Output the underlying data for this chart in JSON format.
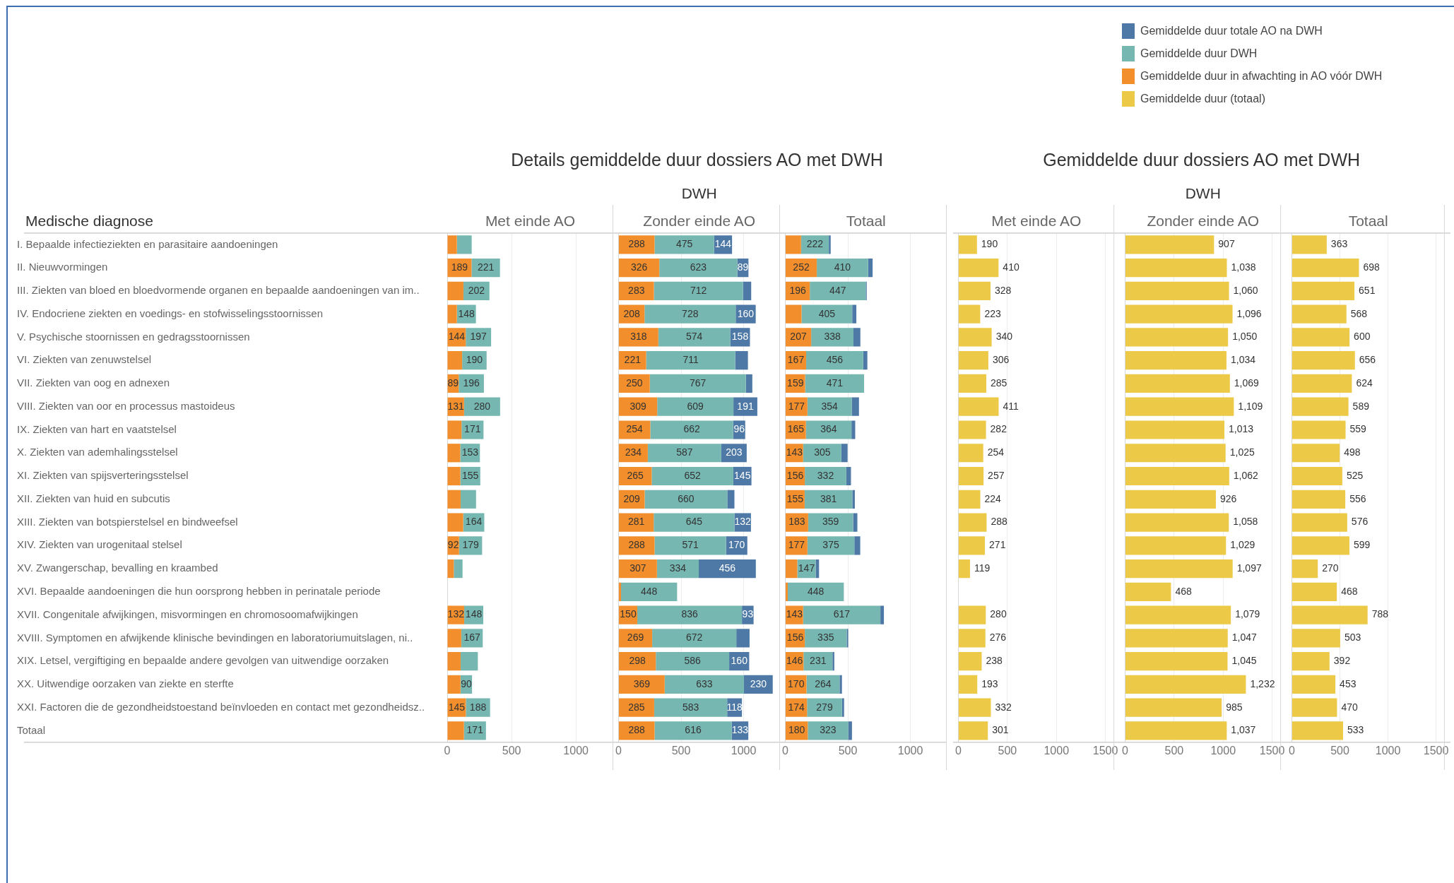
{
  "chart_data": [
    {
      "type": "bar",
      "orientation": "horizontal",
      "stacked": true,
      "title": "Met einde AO",
      "ylabel": "Medische diagnose",
      "legend": "top right",
      "grid": "x",
      "xlim": [
        0,
        1290
      ],
      "xticks": [
        0,
        500,
        1000
      ],
      "categories": [
        "I. Bepaalde infectieziekten en parasitaire aandoeningen",
        "II. Nieuwvormingen",
        "III. Ziekten van bloed en bloedvormende organen en bepaalde aandoeningen van im..",
        "IV. Endocriene ziekten en voedings- en stofwisselingsstoornissen",
        "V. Psychische stoornissen en gedragsstoornissen",
        "VI. Ziekten van zenuwstelsel",
        "VII. Ziekten van oog en adnexen",
        "VIII. Ziekten van oor en processus mastoideus",
        "IX. Ziekten van hart en vaatstelsel",
        "X. Ziekten van ademhalingsstelsel",
        "XI. Ziekten van spijsverteringsstelsel",
        "XII. Ziekten van huid en subcutis",
        "XIII. Ziekten van botspierstelsel en bindweefsel",
        "XIV. Ziekten van urogenitaal stelsel",
        "XV. Zwangerschap, bevalling en kraambed",
        "XVI. Bepaalde aandoeningen die hun oorsprong hebben in perinatale periode",
        "XVII. Congenitale afwijkingen, misvormingen en chromosoomafwijkingen",
        "XVIII. Symptomen en afwijkende klinische bevindingen en laboratoriumuitslagen, ni..",
        "XIX. Letsel, vergiftiging en bepaalde andere gevolgen van uitwendige oorzaken",
        "XX. Uitwendige oorzaken van ziekte en sterfte",
        "XXI. Factoren die de gezondheidstoestand beïnvloeden en contact met gezondheidsz..",
        "Totaal"
      ],
      "series": [
        {
          "name": "Gemiddelde duur in afwachting in AO vóór DWH",
          "color": "#f28e2b",
          "values": [
            75,
            189,
            126,
            75,
            144,
            116,
            89,
            131,
            111,
            101,
            102,
            104,
            124,
            92,
            51,
            null,
            132,
            109,
            104,
            103,
            145,
            130
          ],
          "value_labels": [
            null,
            "189",
            null,
            null,
            "144",
            null,
            "89",
            "131",
            null,
            null,
            null,
            null,
            null,
            "92",
            null,
            null,
            "132",
            null,
            null,
            null,
            "145",
            null
          ]
        },
        {
          "name": "Gemiddelde duur DWH",
          "color": "#76b7b2",
          "values": [
            115,
            221,
            202,
            148,
            197,
            190,
            196,
            280,
            171,
            153,
            155,
            120,
            164,
            179,
            68,
            null,
            148,
            167,
            134,
            90,
            188,
            171
          ],
          "value_labels": [
            null,
            "221",
            "202",
            "148",
            "197",
            "190",
            "196",
            "280",
            "171",
            "153",
            "155",
            null,
            "164",
            "179",
            null,
            null,
            "148",
            "167",
            null,
            "90",
            "188",
            "171"
          ]
        }
      ]
    },
    {
      "type": "bar",
      "orientation": "horizontal",
      "stacked": true,
      "title": "Zonder einde AO",
      "annotations": [
        "Details gemiddelde duur dossiers AO met DWH",
        "DWH"
      ],
      "legend": "top right",
      "tick_labels": "x",
      "grid": "x",
      "xlim": [
        0,
        1290
      ],
      "xticks": [
        0,
        500,
        1000
      ],
      "categories": [
        null,
        null,
        null,
        null,
        null,
        null,
        null,
        null,
        null,
        null,
        null,
        null,
        null,
        null,
        null,
        null,
        null,
        null,
        null,
        null,
        null,
        null
      ],
      "series": [
        {
          "name": "Gemiddelde duur in afwachting in AO vóór DWH",
          "color": "#f28e2b",
          "values": [
            288,
            326,
            283,
            208,
            318,
            221,
            250,
            309,
            254,
            234,
            265,
            209,
            281,
            288,
            307,
            20,
            150,
            269,
            298,
            369,
            285,
            288
          ],
          "value_labels": [
            "288",
            "326",
            "283",
            "208",
            "318",
            "221",
            "250",
            "309",
            "254",
            "234",
            "265",
            "209",
            "281",
            "288",
            "307",
            null,
            "150",
            "269",
            "298",
            "369",
            "285",
            "288"
          ]
        },
        {
          "name": "Gemiddelde duur DWH",
          "color": "#76b7b2",
          "values": [
            475,
            623,
            712,
            728,
            574,
            711,
            767,
            609,
            662,
            587,
            652,
            660,
            645,
            571,
            334,
            448,
            836,
            672,
            586,
            633,
            583,
            616
          ],
          "value_labels": [
            "475",
            "623",
            "712",
            "728",
            "574",
            "711",
            "767",
            "609",
            "662",
            "587",
            "652",
            "660",
            "645",
            "571",
            "334",
            "448",
            "836",
            "672",
            "586",
            "633",
            "583",
            "616"
          ]
        },
        {
          "name": "Gemiddelde duur totale AO na DWH",
          "color": "#4e79a7",
          "values": [
            144,
            89,
            65,
            160,
            158,
            102,
            52,
            191,
            96,
            203,
            145,
            57,
            132,
            170,
            456,
            null,
            93,
            106,
            160,
            230,
            118,
            133
          ],
          "value_labels": [
            "144",
            "89",
            null,
            "160",
            "158",
            null,
            null,
            "191",
            "96",
            "203",
            "145",
            null,
            "132",
            "170",
            "456",
            null,
            "93",
            null,
            "160",
            "230",
            "118",
            "133"
          ]
        }
      ]
    },
    {
      "type": "bar",
      "orientation": "horizontal",
      "stacked": true,
      "title": "Totaal",
      "legend": "top right",
      "tick_labels": "x",
      "grid": "x",
      "xlim": [
        0,
        1290
      ],
      "xticks": [
        0,
        500,
        1000
      ],
      "categories": [
        null,
        null,
        null,
        null,
        null,
        null,
        null,
        null,
        null,
        null,
        null,
        null,
        null,
        null,
        null,
        null,
        null,
        null,
        null,
        null,
        null,
        null
      ],
      "series": [
        {
          "name": "Gemiddelde duur in afwachting in AO vóór DWH",
          "color": "#f28e2b",
          "values": [
            126,
            252,
            196,
            130,
            207,
            167,
            159,
            177,
            165,
            143,
            156,
            155,
            183,
            177,
            96,
            20,
            143,
            156,
            146,
            170,
            174,
            180
          ],
          "value_labels": [
            null,
            "252",
            "196",
            null,
            "207",
            "167",
            "159",
            "177",
            "165",
            "143",
            "156",
            "155",
            "183",
            "177",
            null,
            null,
            "143",
            "156",
            "146",
            "170",
            "174",
            "180"
          ]
        },
        {
          "name": "Gemiddelde duur DWH",
          "color": "#76b7b2",
          "values": [
            222,
            410,
            447,
            405,
            338,
            456,
            471,
            354,
            364,
            305,
            332,
            381,
            359,
            375,
            147,
            448,
            617,
            335,
            231,
            264,
            279,
            323
          ],
          "value_labels": [
            "222",
            "410",
            "447",
            "405",
            "338",
            "456",
            "471",
            "354",
            "364",
            "305",
            "332",
            "381",
            "359",
            "375",
            "147",
            "448",
            "617",
            "335",
            "231",
            "264",
            "279",
            "323"
          ]
        },
        {
          "name": "Gemiddelde duur totale AO na DWH",
          "color": "#4e79a7",
          "values": [
            15,
            36,
            8,
            33,
            55,
            33,
            null,
            58,
            30,
            50,
            37,
            20,
            34,
            47,
            27,
            null,
            28,
            12,
            15,
            19,
            17,
            30
          ]
        }
      ]
    },
    {
      "type": "bar",
      "orientation": "horizontal",
      "title": "Met einde AO",
      "legend": "top right",
      "tick_labels": "x",
      "grid": "x",
      "xlim": [
        0,
        1590
      ],
      "xticks": [
        0,
        500,
        1000,
        1500
      ],
      "categories": [
        null,
        null,
        null,
        null,
        null,
        null,
        null,
        null,
        null,
        null,
        null,
        null,
        null,
        null,
        null,
        null,
        null,
        null,
        null,
        null,
        null,
        null
      ],
      "series": [
        {
          "name": "Gemiddelde duur (totaal)",
          "color": "#edc948",
          "values": [
            190,
            410,
            328,
            223,
            340,
            306,
            285,
            411,
            282,
            254,
            257,
            224,
            288,
            271,
            119,
            null,
            280,
            276,
            238,
            193,
            332,
            301
          ],
          "value_labels": [
            "190",
            "410",
            "328",
            "223",
            "340",
            "306",
            "285",
            "411",
            "282",
            "254",
            "257",
            "224",
            "288",
            "271",
            "119",
            null,
            "280",
            "276",
            "238",
            "193",
            "332",
            "301"
          ]
        }
      ]
    },
    {
      "type": "bar",
      "orientation": "horizontal",
      "title": "Zonder einde AO",
      "annotations": [
        "Gemiddelde duur dossiers AO met DWH",
        "DWH"
      ],
      "legend": "top right",
      "tick_labels": "x",
      "grid": "x",
      "xlim": [
        0,
        1590
      ],
      "xticks": [
        0,
        500,
        1000,
        1500
      ],
      "categories": [
        null,
        null,
        null,
        null,
        null,
        null,
        null,
        null,
        null,
        null,
        null,
        null,
        null,
        null,
        null,
        null,
        null,
        null,
        null,
        null,
        null,
        null
      ],
      "series": [
        {
          "name": "Gemiddelde duur (totaal)",
          "color": "#edc948",
          "values": [
            907,
            1038,
            1060,
            1096,
            1050,
            1034,
            1069,
            1109,
            1013,
            1025,
            1062,
            926,
            1058,
            1029,
            1097,
            468,
            1079,
            1047,
            1045,
            1232,
            985,
            1037
          ],
          "value_labels": [
            "907",
            "1,038",
            "1,060",
            "1,096",
            "1,050",
            "1,034",
            "1,069",
            "1,109",
            "1,013",
            "1,025",
            "1,062",
            "926",
            "1,058",
            "1,029",
            "1,097",
            "468",
            "1,079",
            "1,047",
            "1,045",
            "1,232",
            "985",
            "1,037"
          ]
        }
      ]
    },
    {
      "type": "bar",
      "orientation": "horizontal",
      "title": "Totaal",
      "legend": "top right",
      "tick_labels": "x",
      "grid": "x",
      "xlim": [
        0,
        1590
      ],
      "xticks": [
        0,
        500,
        1000,
        1500
      ],
      "categories": [
        null,
        null,
        null,
        null,
        null,
        null,
        null,
        null,
        null,
        null,
        null,
        null,
        null,
        null,
        null,
        null,
        null,
        null,
        null,
        null,
        null,
        null
      ],
      "series": [
        {
          "name": "Gemiddelde duur (totaal)",
          "color": "#edc948",
          "values": [
            363,
            698,
            651,
            568,
            600,
            656,
            624,
            589,
            559,
            498,
            525,
            556,
            576,
            599,
            270,
            468,
            788,
            503,
            392,
            453,
            470,
            533
          ],
          "value_labels": [
            "363",
            "698",
            "651",
            "568",
            "600",
            "656",
            "624",
            "589",
            "559",
            "498",
            "525",
            "556",
            "576",
            "599",
            "270",
            "468",
            "788",
            "503",
            "392",
            "453",
            "470",
            "533"
          ]
        }
      ]
    }
  ]
}
